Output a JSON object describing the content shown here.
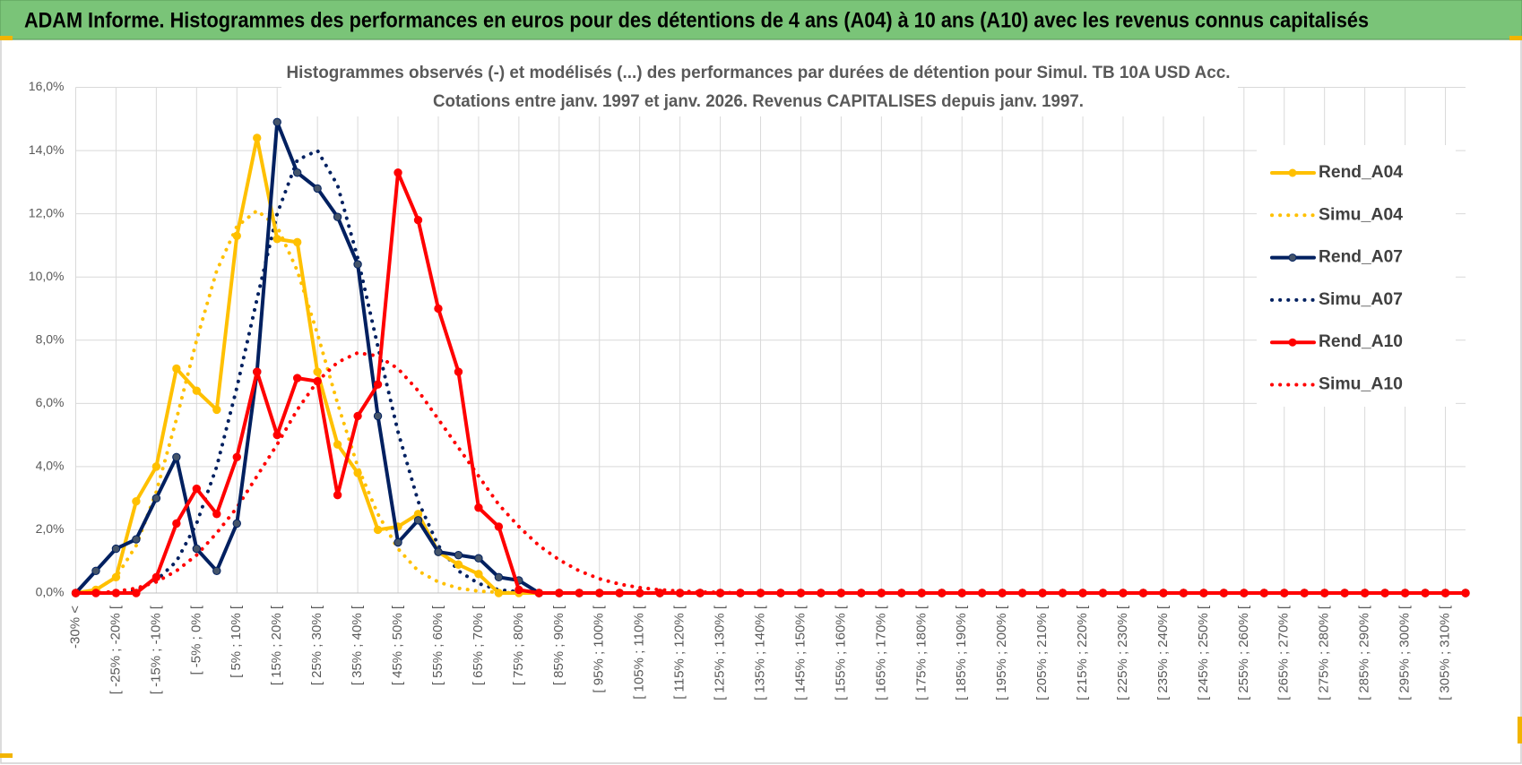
{
  "chart_data": {
    "type": "line",
    "header": "ADAM Informe. Histogrammes des performances en euros pour des détentions de 4 ans (A04) à 10 ans (A10) avec les revenus connus capitalisés",
    "title": [
      "Histogrammes observés (-) et modélisés (...) des performances par durées de détention pour Simul. TB 10A USD Acc.",
      "Cotations entre janv. 1997 et janv. 2026. Revenus CAPITALISES depuis janv. 1997."
    ],
    "categories": [
      "-30% <",
      null,
      "[ -25% ; -20% [",
      null,
      "[ -15% ; -10% [",
      null,
      "[ -5% ; 0% [",
      null,
      "[ 5% ; 10% [",
      null,
      "[ 15% ; 20% [",
      null,
      "[ 25% ; 30% [",
      null,
      "[ 35% ; 40% [",
      null,
      "[ 45% ; 50% [",
      null,
      "[ 55% ; 60% [",
      null,
      "[ 65% ; 70% [",
      null,
      "[ 75% ; 80% [",
      null,
      "[ 85% ; 90% [",
      null,
      "[ 95% ; 100% [",
      null,
      "[ 105% ; 110% [",
      null,
      "[ 115% ; 120% [",
      null,
      "[ 125% ; 130% [",
      null,
      "[ 135% ; 140% [",
      null,
      "[ 145% ; 150% [",
      null,
      "[ 155% ; 160% [",
      null,
      "[ 165% ; 170% [",
      null,
      "[ 175% ; 180% [",
      null,
      "[ 185% ; 190% [",
      null,
      "[ 195% ; 200% [",
      null,
      "[ 205% ; 210% [",
      null,
      "[ 215% ; 220% [",
      null,
      "[ 225% ; 230% [",
      null,
      "[ 235% ; 240% [",
      null,
      "[ 245% ; 250% [",
      null,
      "[ 255% ; 260% [",
      null,
      "[ 265% ; 270% [",
      null,
      "[ 275% ; 280% [",
      null,
      "[ 285% ; 290% [",
      null,
      "[ 295% ; 300% [",
      null,
      "[ 305% ; 310% [",
      null
    ],
    "series": [
      {
        "name": "Rend_A04",
        "color": "#ffc000",
        "line_style": "solid",
        "markers": true,
        "values": [
          0,
          0.1,
          0.5,
          2.9,
          4.0,
          7.1,
          6.4,
          5.8,
          11.3,
          14.4,
          11.2,
          11.1,
          7.0,
          4.7,
          3.8,
          2.0,
          2.1,
          2.5,
          1.3,
          0.9,
          0.6,
          0,
          0,
          0,
          0,
          0,
          0,
          0,
          0,
          0,
          0,
          0,
          0,
          0,
          0,
          0,
          0,
          0,
          0,
          0,
          0,
          0,
          0,
          0,
          0,
          0,
          0,
          0,
          0,
          0,
          0,
          0,
          0,
          0,
          0,
          0,
          0,
          0,
          0,
          0,
          0,
          0,
          0,
          0,
          0,
          0,
          0,
          0,
          0,
          0
        ]
      },
      {
        "name": "Simu_A04",
        "color": "#ffc000",
        "line_style": "dotted",
        "markers": false,
        "values": [
          0,
          0.1,
          0.5,
          1.5,
          3.2,
          5.5,
          8.0,
          10.2,
          11.6,
          12.1,
          11.6,
          10.2,
          8.2,
          6.0,
          4.0,
          2.5,
          1.4,
          0.7,
          0.35,
          0.15,
          0.06,
          0.02,
          0,
          0,
          0,
          0,
          0,
          0,
          0,
          0,
          0,
          0,
          0,
          0,
          0,
          0,
          0,
          0,
          0,
          0,
          0,
          0,
          0,
          0,
          0,
          0,
          0,
          0,
          0,
          0,
          0,
          0,
          0,
          0,
          0,
          0,
          0,
          0,
          0,
          0,
          0,
          0,
          0,
          0,
          0,
          0,
          0,
          0,
          0,
          0
        ]
      },
      {
        "name": "Rend_A07",
        "color": "#002060",
        "line_style": "solid",
        "markers": true,
        "values": [
          0,
          0.7,
          1.4,
          1.7,
          3.0,
          4.3,
          1.4,
          0.7,
          2.2,
          7.0,
          14.9,
          13.3,
          12.8,
          11.9,
          10.4,
          5.6,
          1.6,
          2.3,
          1.3,
          1.2,
          1.1,
          0.5,
          0.4,
          0,
          0,
          0,
          0,
          0,
          0,
          0,
          0,
          0,
          0,
          0,
          0,
          0,
          0,
          0,
          0,
          0,
          0,
          0,
          0,
          0,
          0,
          0,
          0,
          0,
          0,
          0,
          0,
          0,
          0,
          0,
          0,
          0,
          0,
          0,
          0,
          0,
          0,
          0,
          0,
          0,
          0,
          0,
          0,
          0,
          0,
          0
        ]
      },
      {
        "name": "Simu_A07",
        "color": "#002060",
        "line_style": "dotted",
        "markers": false,
        "values": [
          0,
          0,
          0,
          0.1,
          0.4,
          1.0,
          2.2,
          4.0,
          6.5,
          9.3,
          12.0,
          13.7,
          14.0,
          12.9,
          10.6,
          7.8,
          5.1,
          2.9,
          1.5,
          0.7,
          0.3,
          0.1,
          0.04,
          0,
          0,
          0,
          0,
          0,
          0,
          0,
          0,
          0,
          0,
          0,
          0,
          0,
          0,
          0,
          0,
          0,
          0,
          0,
          0,
          0,
          0,
          0,
          0,
          0,
          0,
          0,
          0,
          0,
          0,
          0,
          0,
          0,
          0,
          0,
          0,
          0,
          0,
          0,
          0,
          0,
          0,
          0,
          0,
          0,
          0,
          0
        ]
      },
      {
        "name": "Rend_A10",
        "color": "#ff0000",
        "line_style": "solid",
        "markers": true,
        "values": [
          0,
          0,
          0,
          0,
          0.5,
          2.2,
          3.3,
          2.5,
          4.3,
          7.0,
          5.0,
          6.8,
          6.7,
          3.1,
          5.6,
          6.6,
          13.3,
          11.8,
          9.0,
          7.0,
          2.7,
          2.1,
          0.1,
          0,
          0,
          0,
          0,
          0,
          0,
          0,
          0,
          0,
          0,
          0,
          0,
          0,
          0,
          0,
          0,
          0,
          0,
          0,
          0,
          0,
          0,
          0,
          0,
          0,
          0,
          0,
          0,
          0,
          0,
          0,
          0,
          0,
          0,
          0,
          0,
          0,
          0,
          0,
          0,
          0,
          0,
          0,
          0,
          0,
          0,
          0
        ]
      },
      {
        "name": "Simu_A10",
        "color": "#ff0000",
        "line_style": "dotted",
        "markers": false,
        "values": [
          0,
          0,
          0.05,
          0.15,
          0.35,
          0.7,
          1.2,
          1.9,
          2.7,
          3.7,
          4.7,
          5.8,
          6.7,
          7.3,
          7.6,
          7.5,
          7.1,
          6.4,
          5.5,
          4.6,
          3.7,
          2.8,
          2.1,
          1.5,
          1.05,
          0.7,
          0.45,
          0.28,
          0.17,
          0.1,
          0.06,
          0.03,
          0.02,
          0,
          0,
          0,
          0,
          0,
          0,
          0,
          0,
          0,
          0,
          0,
          0,
          0,
          0,
          0,
          0,
          0,
          0,
          0,
          0,
          0,
          0,
          0,
          0,
          0,
          0,
          0,
          0,
          0,
          0,
          0,
          0,
          0,
          0,
          0,
          0,
          0
        ]
      }
    ],
    "ylim": [
      0,
      16
    ],
    "yticks": [
      {
        "value": 0,
        "label": "0,0%"
      },
      {
        "value": 2,
        "label": "2,0%"
      },
      {
        "value": 4,
        "label": "4,0%"
      },
      {
        "value": 6,
        "label": "6,0%"
      },
      {
        "value": 8,
        "label": "8,0%"
      },
      {
        "value": 10,
        "label": "10,0%"
      },
      {
        "value": 12,
        "label": "12,0%"
      },
      {
        "value": 14,
        "label": "14,0%"
      },
      {
        "value": 16,
        "label": "16,0%"
      }
    ],
    "grid": true,
    "legend": "right"
  }
}
